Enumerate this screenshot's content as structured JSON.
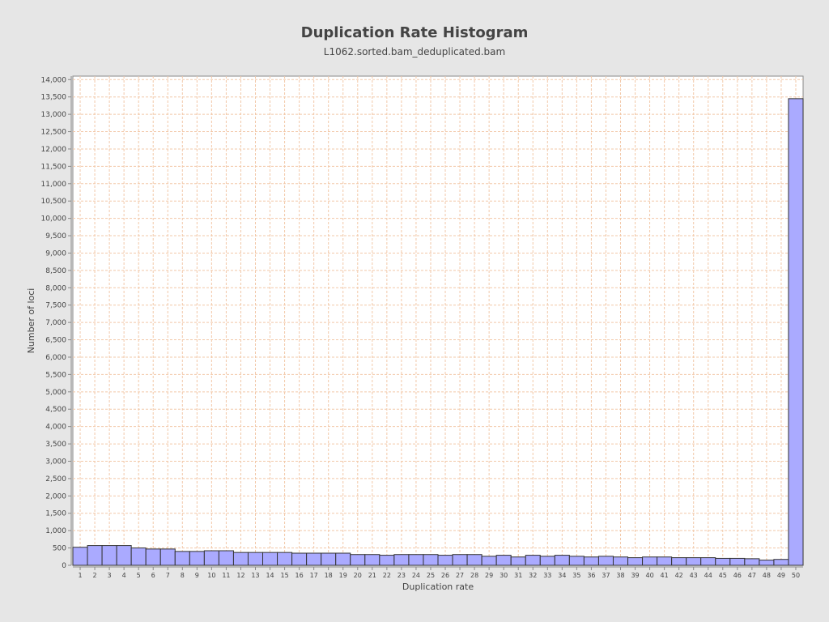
{
  "chart_data": {
    "type": "bar",
    "title": "Duplication Rate Histogram",
    "subtitle": "L1062.sorted.bam_deduplicated.bam",
    "xlabel": "Duplication rate",
    "ylabel": "Number of loci",
    "ylim": [
      0,
      14100
    ],
    "grid": true,
    "legend": "none",
    "y_ticks": [
      "0",
      "500",
      "1,000",
      "1,500",
      "2,000",
      "2,500",
      "3,000",
      "3,500",
      "4,000",
      "4,500",
      "5,000",
      "5,500",
      "6,000",
      "6,500",
      "7,000",
      "7,500",
      "8,000",
      "8,500",
      "9,000",
      "9,500",
      "10,000",
      "10,500",
      "11,000",
      "11,500",
      "12,000",
      "12,500",
      "13,000",
      "13,500",
      "14,000"
    ],
    "y_tick_values": [
      0,
      500,
      1000,
      1500,
      2000,
      2500,
      3000,
      3500,
      4000,
      4500,
      5000,
      5500,
      6000,
      6500,
      7000,
      7500,
      8000,
      8500,
      9000,
      9500,
      10000,
      10500,
      11000,
      11500,
      12000,
      12500,
      13000,
      13500,
      14000
    ],
    "categories": [
      "1",
      "2",
      "3",
      "4",
      "5",
      "6",
      "7",
      "8",
      "9",
      "10",
      "11",
      "12",
      "13",
      "14",
      "15",
      "16",
      "17",
      "18",
      "19",
      "20",
      "21",
      "22",
      "23",
      "24",
      "25",
      "26",
      "27",
      "28",
      "29",
      "30",
      "31",
      "32",
      "33",
      "34",
      "35",
      "36",
      "37",
      "38",
      "39",
      "40",
      "41",
      "42",
      "43",
      "44",
      "45",
      "46",
      "47",
      "48",
      "49",
      "50"
    ],
    "values": [
      520,
      570,
      570,
      570,
      500,
      470,
      470,
      400,
      400,
      420,
      420,
      370,
      370,
      370,
      370,
      350,
      350,
      350,
      350,
      310,
      310,
      290,
      310,
      310,
      310,
      290,
      310,
      310,
      260,
      290,
      240,
      290,
      260,
      290,
      260,
      240,
      260,
      240,
      220,
      240,
      240,
      220,
      220,
      220,
      200,
      200,
      190,
      150,
      170,
      13450
    ],
    "colors": {
      "bar_fill": "#aaaaff",
      "bar_stroke": "#333333",
      "grid": "#f2c8a8",
      "plot_bg": "#ffffff",
      "page_bg": "#e6e6e6"
    }
  }
}
